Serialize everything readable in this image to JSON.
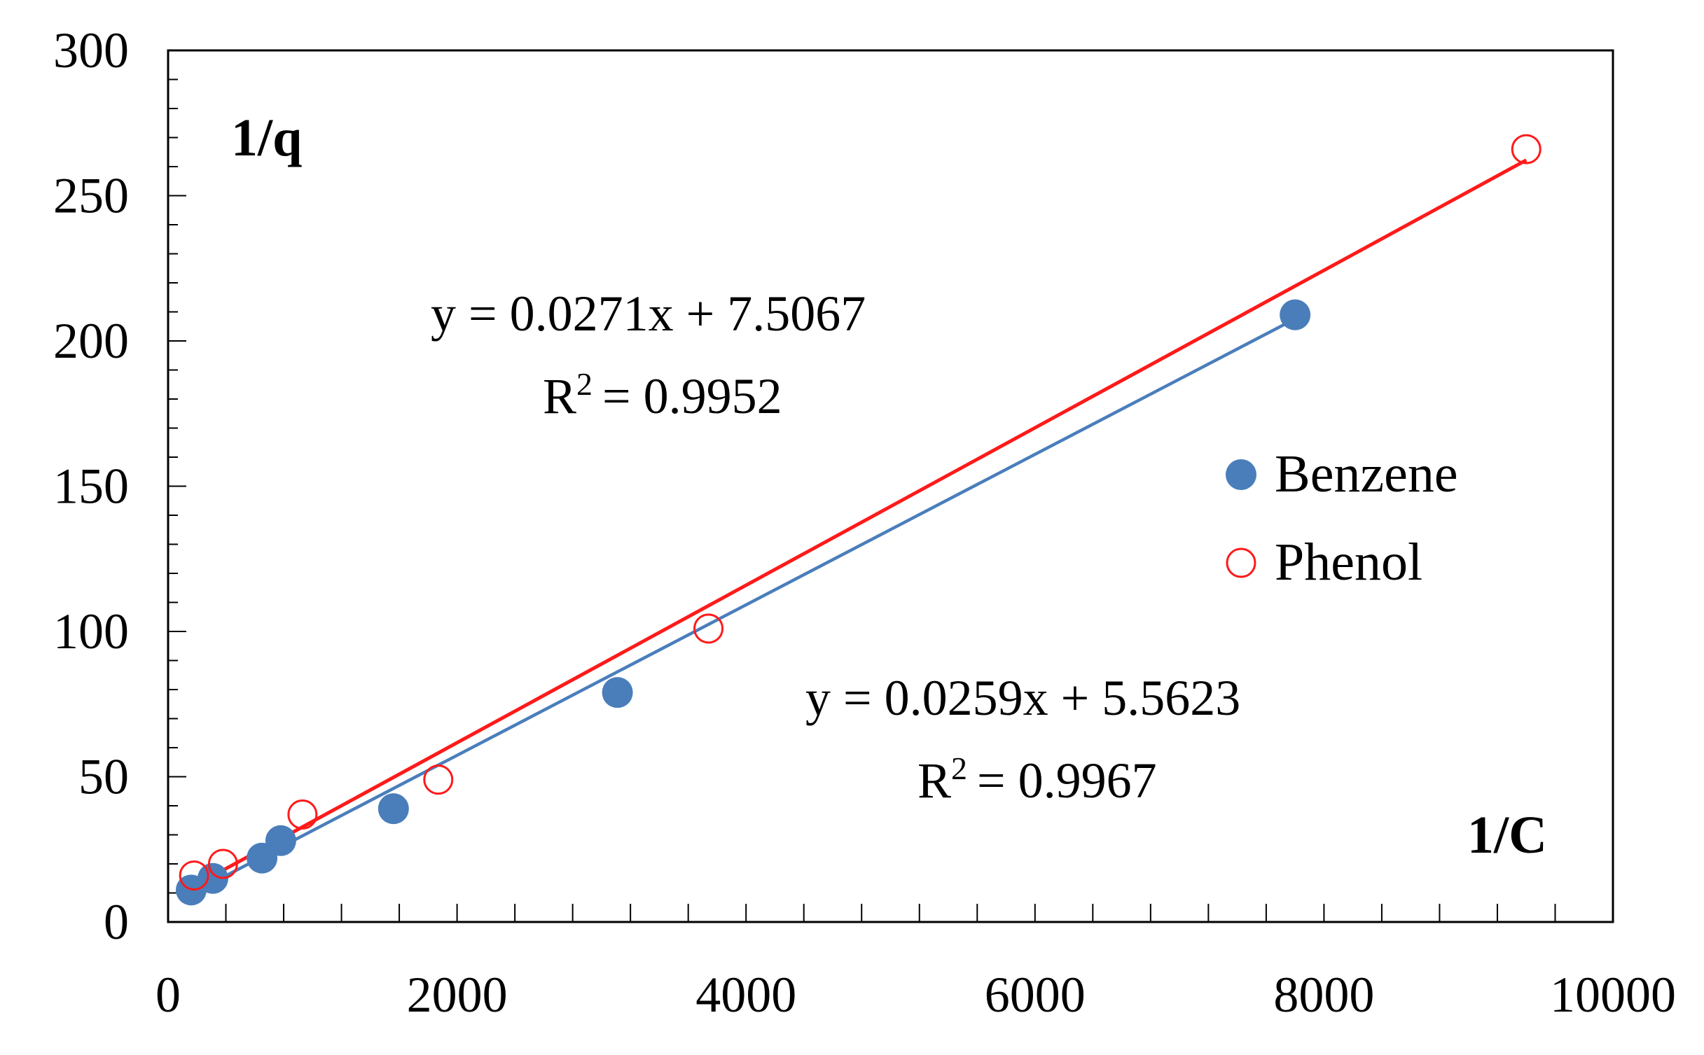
{
  "chart_data": {
    "type": "scatter",
    "title": "",
    "xlabel": "1/C",
    "ylabel": "1/q",
    "xlim": [
      0,
      10000
    ],
    "ylim": [
      0,
      300
    ],
    "x_ticks": [
      0,
      2000,
      4000,
      6000,
      8000,
      10000
    ],
    "y_ticks": [
      0,
      50,
      100,
      150,
      200,
      250,
      300
    ],
    "x_tick_labels": [
      "0",
      "2000",
      "4000",
      "6000",
      "8000",
      "10000"
    ],
    "y_tick_labels": [
      "0",
      "50",
      "100",
      "150",
      "200",
      "250",
      "300"
    ],
    "x_minor_step": 400,
    "y_minor_step": 10,
    "grid": false,
    "legend_position": "right",
    "series": [
      {
        "name": "Benzene",
        "marker": "filled-circle",
        "color": "#4a7ebb",
        "x": [
          160,
          310,
          650,
          780,
          1560,
          3110,
          7800
        ],
        "y": [
          11,
          15,
          22,
          28,
          39,
          79,
          209
        ],
        "trendline": {
          "slope": 0.0259,
          "intercept": 5.5623,
          "x_range": [
            160,
            7800
          ],
          "equation": "y = 0.0259x + 5.5623",
          "r2_base": "R",
          "r2_sup": "2",
          "r2_value": "= 0.9967"
        }
      },
      {
        "name": "Phenol",
        "marker": "open-circle",
        "color": "#ff1a1a",
        "x": [
          180,
          380,
          930,
          1870,
          3740,
          9400
        ],
        "y": [
          16,
          20,
          37,
          49,
          101,
          266
        ],
        "trendline": {
          "slope": 0.0271,
          "intercept": 7.5067,
          "x_range": [
            180,
            9400
          ],
          "equation": "y = 0.0271x + 7.5067",
          "r2_base": "R",
          "r2_sup": "2",
          "r2_value": "= 0.9952"
        }
      }
    ]
  }
}
